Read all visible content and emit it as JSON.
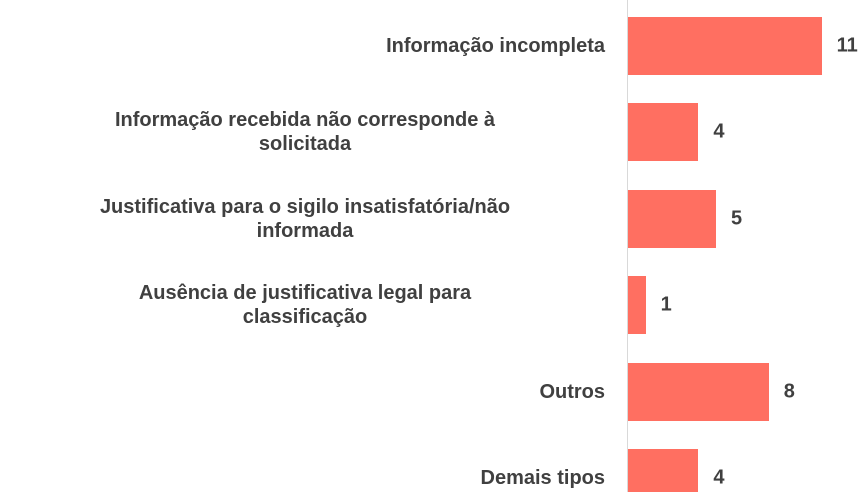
{
  "chart_data": {
    "type": "bar",
    "orientation": "horizontal",
    "categories": [
      "Informação incompleta",
      "Informação recebida não corresponde à\nsolicitada",
      "Justificativa para o sigilo insatisfatória/não\ninformada",
      "Ausência de justificativa legal para\nclassificação",
      "Outros",
      "Demais tipos"
    ],
    "values": [
      11,
      4,
      5,
      1,
      8,
      4
    ],
    "color": "#ff6f61"
  }
}
